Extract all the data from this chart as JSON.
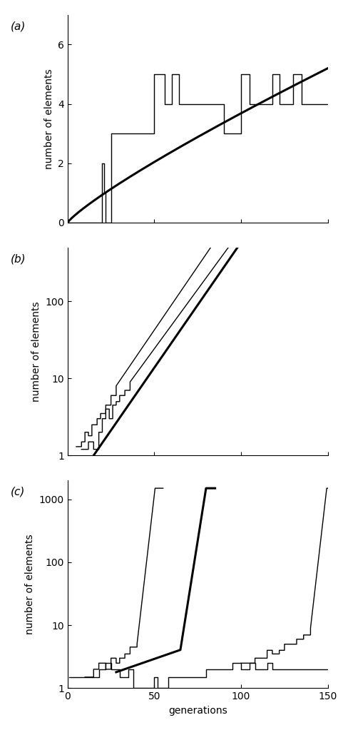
{
  "thick_lw": 2.2,
  "thin_lw": 1.0,
  "panel_labels": [
    "(a)",
    "(b)",
    "(c)"
  ],
  "ylabel": "number of elements",
  "xlabel": "generations"
}
